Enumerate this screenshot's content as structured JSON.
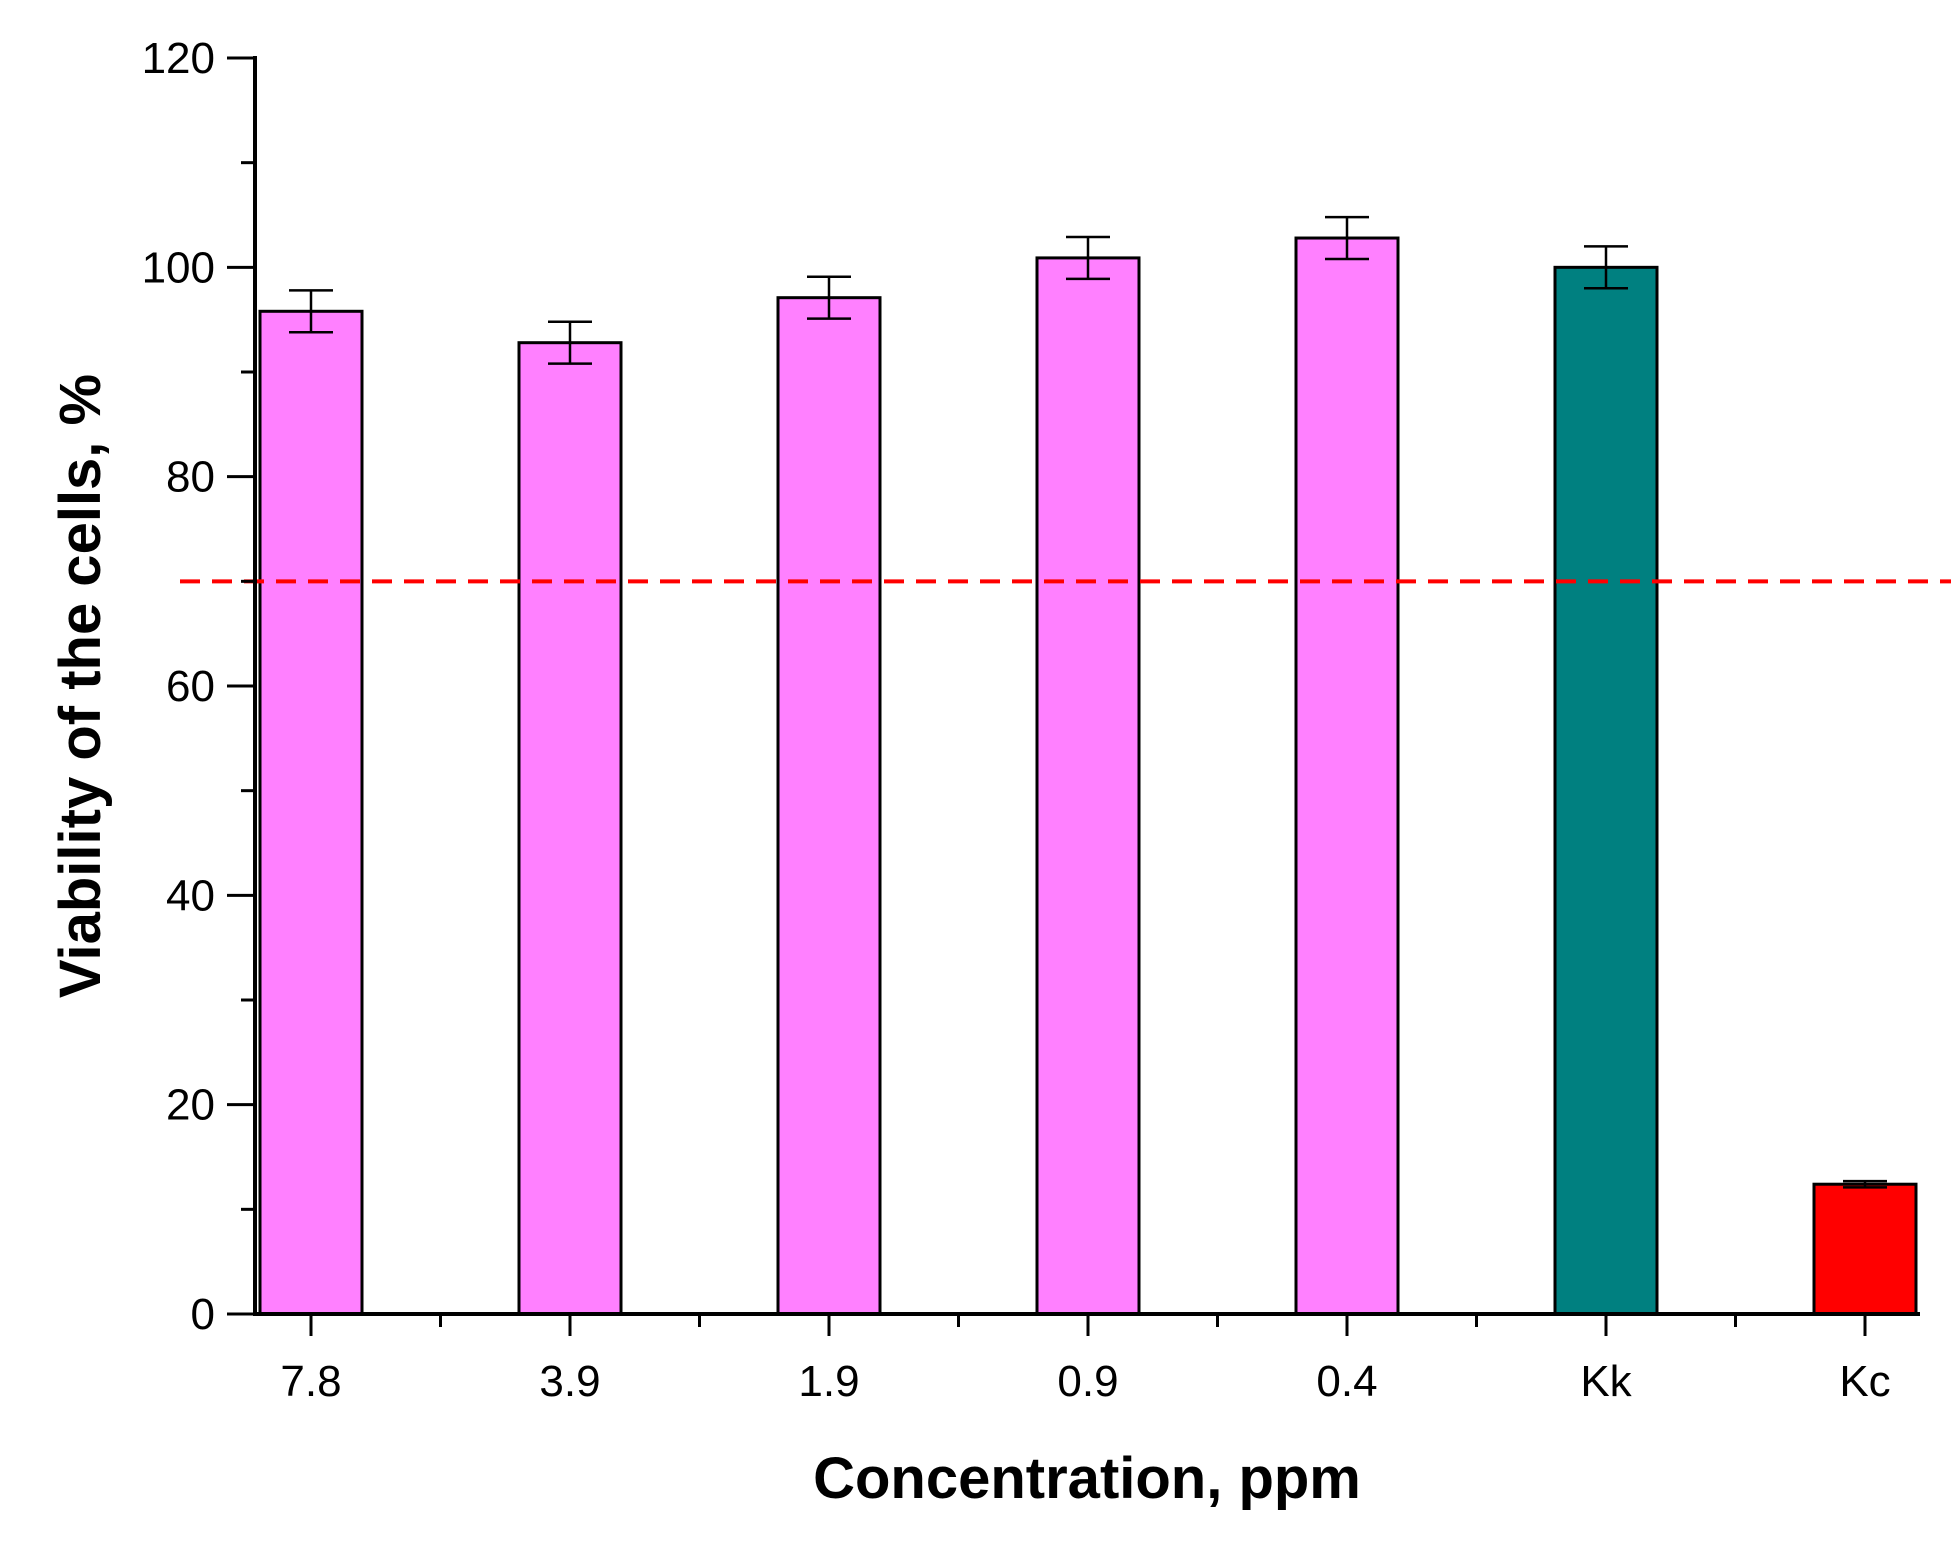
{
  "chart_data": {
    "type": "bar",
    "title": "",
    "xlabel": "Concentration, ppm",
    "ylabel": "Viability of the cells, %",
    "categories": [
      "7.8",
      "3.9",
      "1.9",
      "0.9",
      "0.4",
      "Kk",
      "Kc"
    ],
    "values": [
      95.8,
      92.8,
      97.1,
      100.9,
      102.8,
      100.0,
      12.4
    ],
    "errors": [
      2.0,
      2.0,
      2.0,
      2.0,
      2.0,
      2.0,
      0.3
    ],
    "bar_colors": [
      "#ff80ff",
      "#ff80ff",
      "#ff80ff",
      "#ff80ff",
      "#ff80ff",
      "#008080",
      "#ff0000"
    ],
    "ylim": [
      0,
      120
    ],
    "yticks": [
      0,
      20,
      40,
      60,
      80,
      100,
      120
    ],
    "y_minor_step": 10,
    "threshold": {
      "value": 70,
      "color": "#ff0000",
      "style": "dashed"
    },
    "grid": false,
    "legend": "none"
  }
}
